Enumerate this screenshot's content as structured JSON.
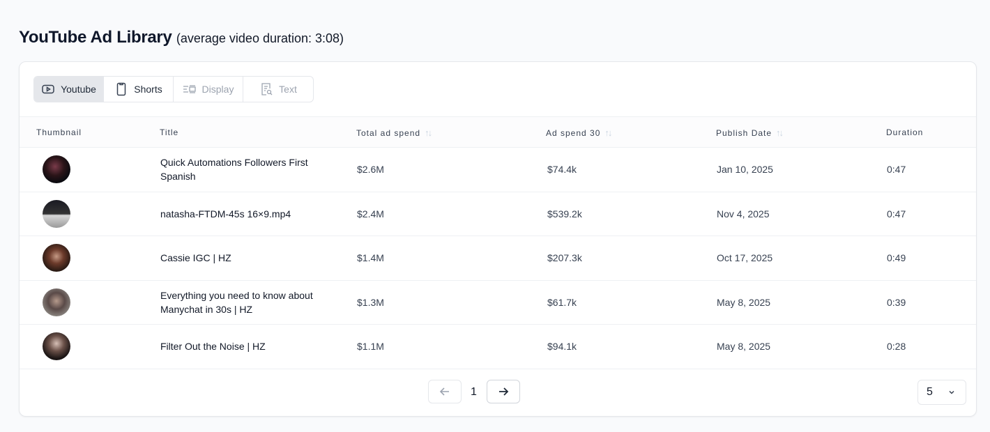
{
  "header": {
    "title": "YouTube Ad Library",
    "subtitle": "(average video duration: 3:08)"
  },
  "tabs": [
    {
      "label": "Youtube",
      "icon": "youtube-icon",
      "state": "active"
    },
    {
      "label": "Shorts",
      "icon": "mobile-icon",
      "state": "normal"
    },
    {
      "label": "Display",
      "icon": "display-icon",
      "state": "disabled"
    },
    {
      "label": "Text",
      "icon": "text-search-icon",
      "state": "disabled"
    }
  ],
  "columns": [
    "Thumbnail",
    "Title",
    "Total ad spend",
    "Ad spend 30",
    "Publish Date",
    "Duration"
  ],
  "rows": [
    {
      "title": "Quick Automations Followers First Spanish",
      "total": "$2.6M",
      "spend30": "$74.4k",
      "date": "Jan 10, 2025",
      "duration": "0:47"
    },
    {
      "title": "natasha-FTDM-45s 16×9.mp4",
      "total": "$2.4M",
      "spend30": "$539.2k",
      "date": "Nov 4, 2025",
      "duration": "0:47"
    },
    {
      "title": "Cassie IGC | HZ",
      "total": "$1.4M",
      "spend30": "$207.3k",
      "date": "Oct 17, 2025",
      "duration": "0:49"
    },
    {
      "title": "Everything you need to know about Manychat in 30s | HZ",
      "total": "$1.3M",
      "spend30": "$61.7k",
      "date": "May 8, 2025",
      "duration": "0:39"
    },
    {
      "title": "Filter Out the Noise | HZ",
      "total": "$1.1M",
      "spend30": "$94.1k",
      "date": "May 8, 2025",
      "duration": "0:28"
    }
  ],
  "pagination": {
    "page": "1",
    "page_size": "5"
  }
}
